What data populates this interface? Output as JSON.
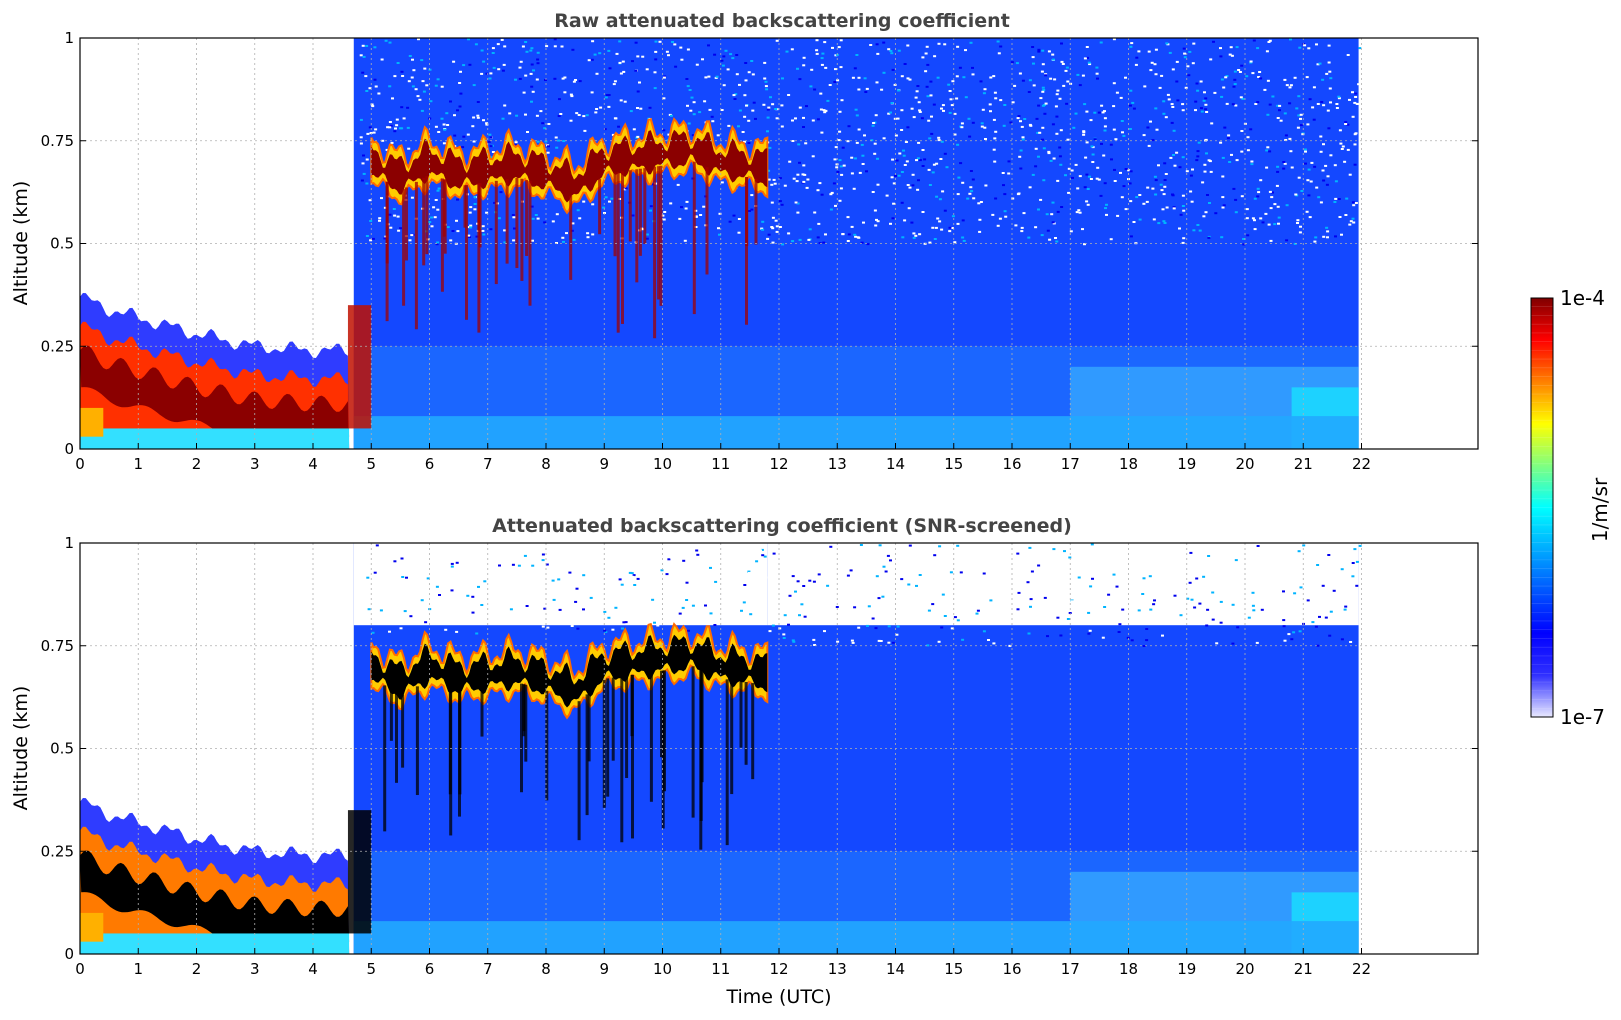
{
  "chart_data": [
    {
      "type": "heatmap",
      "title": "Raw attenuated backscattering coefficient",
      "xlabel": "",
      "ylabel": "Altitude (km)",
      "xlim": [
        0,
        24
      ],
      "ylim": [
        0,
        1
      ],
      "xticks": [
        "0",
        "1",
        "2",
        "3",
        "4",
        "5",
        "6",
        "7",
        "8",
        "9",
        "10",
        "11",
        "12",
        "13",
        "14",
        "15",
        "16",
        "17",
        "18",
        "19",
        "20",
        "21",
        "22"
      ],
      "yticks": [
        "0",
        "0.25",
        "0.5",
        "0.75",
        "1"
      ],
      "grid": true,
      "data_end_hour": 21.95,
      "features": {
        "boundary_layer_top_km": {
          "hours": [
            0,
            0.5,
            1,
            2,
            3,
            4,
            4.6
          ],
          "values": [
            0.24,
            0.21,
            0.19,
            0.15,
            0.12,
            0.11,
            0.11
          ]
        },
        "cloud_layer_km": {
          "hours": [
            5,
            5.5,
            6,
            6.5,
            7,
            7.5,
            8,
            8.5,
            9,
            9.5,
            10,
            10.5,
            11,
            11.5,
            11.8
          ],
          "values": [
            0.7,
            0.66,
            0.7,
            0.67,
            0.68,
            0.69,
            0.67,
            0.64,
            0.7,
            0.71,
            0.72,
            0.73,
            0.7,
            0.69,
            0.68
          ]
        }
      }
    },
    {
      "type": "heatmap",
      "title": "Attenuated backscattering coefficient (SNR-screened)",
      "xlabel": "Time (UTC)",
      "ylabel": "Altitude (km)",
      "xlim": [
        0,
        24
      ],
      "ylim": [
        0,
        1
      ],
      "xticks": [
        "0",
        "1",
        "2",
        "3",
        "4",
        "5",
        "6",
        "7",
        "8",
        "9",
        "10",
        "11",
        "12",
        "13",
        "14",
        "15",
        "16",
        "17",
        "18",
        "19",
        "20",
        "21",
        "22"
      ],
      "yticks": [
        "0",
        "0.25",
        "0.5",
        "0.75",
        "1"
      ],
      "grid": true,
      "data_end_hour": 21.95,
      "features": {
        "boundary_layer_top_km": {
          "hours": [
            0,
            0.5,
            1,
            2,
            3,
            4,
            4.6
          ],
          "values": [
            0.24,
            0.21,
            0.19,
            0.15,
            0.12,
            0.11,
            0.11
          ]
        },
        "cloud_layer_km": {
          "hours": [
            5,
            5.5,
            6,
            6.5,
            7,
            7.5,
            8,
            8.5,
            9,
            9.5,
            10,
            10.5,
            11,
            11.5,
            11.8
          ],
          "values": [
            0.7,
            0.66,
            0.7,
            0.67,
            0.68,
            0.69,
            0.67,
            0.64,
            0.7,
            0.71,
            0.72,
            0.73,
            0.7,
            0.69,
            0.68
          ]
        }
      }
    }
  ],
  "colorbar": {
    "label": "1/m/sr",
    "max_label": "1e-4",
    "min_label": "1e-7",
    "scale": "log",
    "colormap": "jet",
    "colors": [
      "#e9e9ff",
      "#0000ff",
      "#0080ff",
      "#00ffff",
      "#80ff80",
      "#ffff00",
      "#ff8000",
      "#ff0000",
      "#800000"
    ]
  }
}
